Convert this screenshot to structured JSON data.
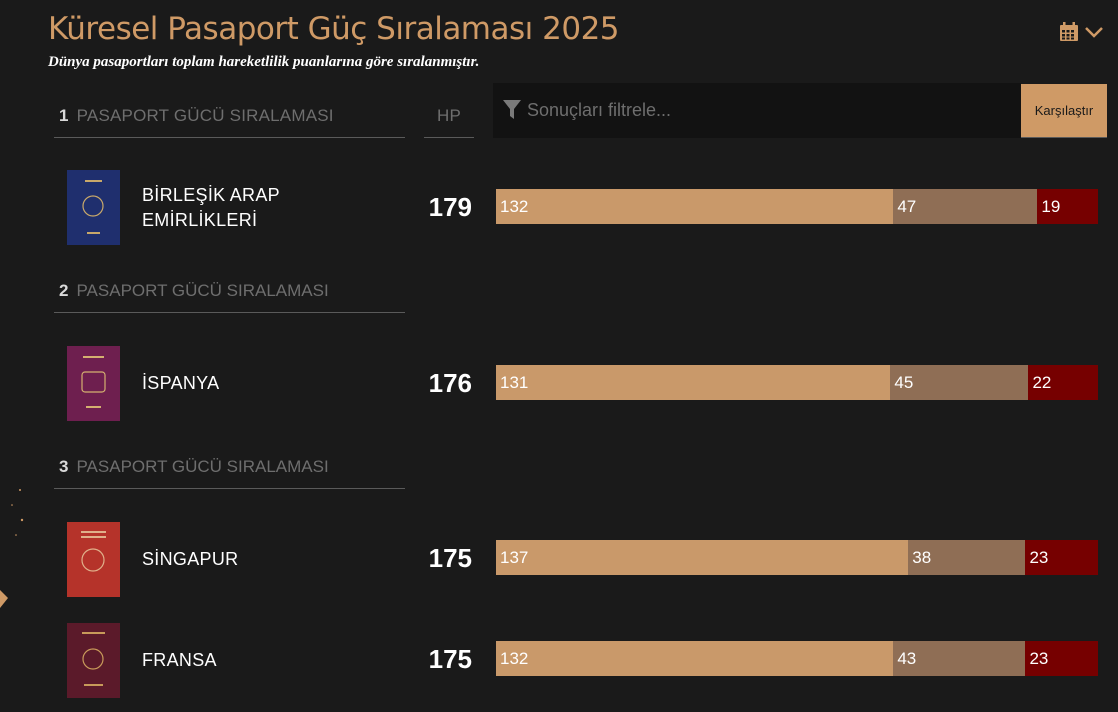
{
  "header": {
    "title": "Küresel Pasaport Güç Sıralaması 2025",
    "subtitle": "Dünya pasaportları toplam hareketlilik puanlarına göre sıralanmıştır.",
    "calendar_icon": "calendar-icon",
    "chevron_icon": "chevron-down-icon"
  },
  "table": {
    "rank_label": "PASAPORT GÜCÜ SIRALAMASI",
    "hp_label": "HP",
    "filter_placeholder": "Sonuçları filtrele...",
    "filter_icon": "filter-icon",
    "compare_label": "Karşılaştır",
    "first_rank": "1"
  },
  "colors": {
    "accent": "#cf9a66",
    "seg_a": "#c9996a",
    "seg_b": "#8f6e55",
    "seg_c": "#760000",
    "background": "#1a1a1a"
  },
  "rank_groups": [
    {
      "rank": "2",
      "label": "PASAPORT GÜCÜ SIRALAMASI"
    },
    {
      "rank": "3",
      "label": "PASAPORT GÜCÜ SIRALAMASI"
    }
  ],
  "countries": [
    {
      "name_line1": "BİRLEŞİK ARAP",
      "name_line2": "EMİRLİKLERİ",
      "score": "179",
      "passport_color": "#1f2f6e",
      "segments": [
        "132",
        "47",
        "19"
      ]
    },
    {
      "name_line1": "İSPANYA",
      "name_line2": "",
      "score": "176",
      "passport_color": "#6e1f4f",
      "segments": [
        "131",
        "45",
        "22"
      ]
    },
    {
      "name_line1": "SİNGAPUR",
      "name_line2": "",
      "score": "175",
      "passport_color": "#b5332a",
      "segments": [
        "137",
        "38",
        "23"
      ]
    },
    {
      "name_line1": "FRANSA",
      "name_line2": "",
      "score": "175",
      "passport_color": "#5b1a2a",
      "segments": [
        "132",
        "43",
        "23"
      ]
    }
  ]
}
